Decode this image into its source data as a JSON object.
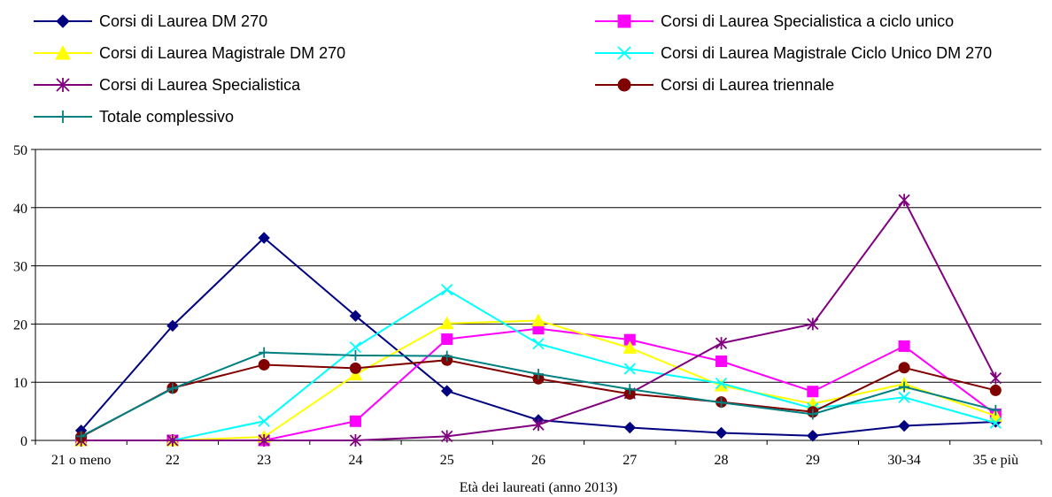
{
  "chart_data": {
    "type": "line",
    "xlabel": "Età dei laureati (anno 2013)",
    "ylabel": "",
    "ylim": [
      0,
      50
    ],
    "yticks": [
      "0",
      "10",
      "20",
      "30",
      "40",
      "50"
    ],
    "grid": "horizontal",
    "legend_position": "top",
    "categories": [
      "21 o meno",
      "22",
      "23",
      "24",
      "25",
      "26",
      "27",
      "28",
      "29",
      "30-34",
      "35 e più"
    ],
    "series": [
      {
        "name": "Corsi di Laurea DM 270",
        "color": "#000080",
        "marker": "diamond",
        "values": [
          1.7,
          19.7,
          34.8,
          21.4,
          8.5,
          3.5,
          2.2,
          1.3,
          0.8,
          2.5,
          3.2
        ]
      },
      {
        "name": "Corsi di Laurea Specialistica a ciclo unico",
        "color": "#FF00FF",
        "marker": "square",
        "values": [
          0,
          0,
          0,
          3.3,
          17.4,
          19.2,
          17.3,
          13.6,
          8.4,
          16.2,
          4.5
        ]
      },
      {
        "name": "Corsi di Laurea Magistrale DM 270",
        "color": "#FFFF00",
        "marker": "triangle",
        "values": [
          0,
          0,
          0.6,
          11.3,
          20.1,
          20.6,
          15.9,
          9.4,
          6.3,
          9.7,
          4.2
        ]
      },
      {
        "name": "Corsi di Laurea Magistrale Ciclo Unico DM 270",
        "color": "#00FFFF",
        "marker": "x",
        "values": [
          0,
          0,
          3.3,
          16.0,
          25.9,
          16.6,
          12.3,
          9.8,
          5.5,
          7.4,
          3.0
        ]
      },
      {
        "name": "Corsi di Laurea Specialistica",
        "color": "#800080",
        "marker": "star",
        "values": [
          0,
          0,
          0,
          0,
          0.7,
          2.7,
          8.1,
          16.7,
          20.0,
          41.3,
          10.7
        ]
      },
      {
        "name": "Corsi di Laurea triennale",
        "color": "#800000",
        "marker": "circle",
        "values": [
          0.6,
          9.0,
          13.0,
          12.4,
          13.8,
          10.6,
          8.0,
          6.6,
          4.9,
          12.5,
          8.6
        ]
      },
      {
        "name": "Totale complessivo",
        "color": "#008080",
        "marker": "plus",
        "values": [
          0.7,
          8.9,
          15.1,
          14.6,
          14.5,
          11.4,
          8.8,
          6.5,
          4.5,
          9.2,
          5.2
        ]
      }
    ]
  }
}
